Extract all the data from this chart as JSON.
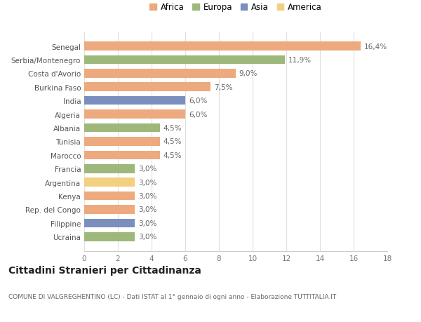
{
  "categories": [
    "Ucraina",
    "Filippine",
    "Rep. del Congo",
    "Kenya",
    "Argentina",
    "Francia",
    "Marocco",
    "Tunisia",
    "Albania",
    "Algeria",
    "India",
    "Burkina Faso",
    "Costa d'Avorio",
    "Serbia/Montenegro",
    "Senegal"
  ],
  "values": [
    3.0,
    3.0,
    3.0,
    3.0,
    3.0,
    3.0,
    4.5,
    4.5,
    4.5,
    6.0,
    6.0,
    7.5,
    9.0,
    11.9,
    16.4
  ],
  "labels": [
    "3,0%",
    "3,0%",
    "3,0%",
    "3,0%",
    "3,0%",
    "3,0%",
    "4,5%",
    "4,5%",
    "4,5%",
    "6,0%",
    "6,0%",
    "7,5%",
    "9,0%",
    "11,9%",
    "16,4%"
  ],
  "colors": [
    "#9db87a",
    "#7b8fbf",
    "#edaa7e",
    "#edaa7e",
    "#f2d080",
    "#9db87a",
    "#edaa7e",
    "#edaa7e",
    "#9db87a",
    "#edaa7e",
    "#7b8fbf",
    "#edaa7e",
    "#edaa7e",
    "#9db87a",
    "#edaa7e"
  ],
  "legend_labels": [
    "Africa",
    "Europa",
    "Asia",
    "America"
  ],
  "legend_colors": [
    "#edaa7e",
    "#9db87a",
    "#7b8fbf",
    "#f2d080"
  ],
  "title": "Cittadini Stranieri per Cittadinanza",
  "subtitle": "COMUNE DI VALGREGHENTINO (LC) - Dati ISTAT al 1° gennaio di ogni anno - Elaborazione TUTTITALIA.IT",
  "xlim": [
    0,
    18
  ],
  "xticks": [
    0,
    2,
    4,
    6,
    8,
    10,
    12,
    14,
    16,
    18
  ],
  "background_color": "#ffffff",
  "plot_bg_color": "#ffffff",
  "grid_color": "#e0e0e0",
  "label_fontsize": 7.5,
  "tick_fontsize": 7.5,
  "title_fontsize": 10,
  "subtitle_fontsize": 6.5
}
